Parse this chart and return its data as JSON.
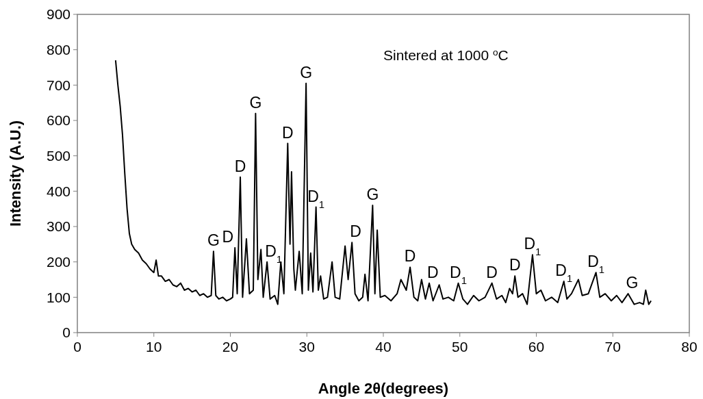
{
  "chart_data": {
    "type": "line",
    "xlabel": "Angle 2θ(degrees)",
    "ylabel": "Intensity (A.U.)",
    "xlim": [
      0,
      80
    ],
    "xticks": [
      0,
      10,
      20,
      30,
      40,
      50,
      60,
      70,
      80
    ],
    "ylim": [
      0,
      900
    ],
    "yticks": [
      0,
      100,
      200,
      300,
      400,
      500,
      600,
      700,
      800,
      900
    ],
    "grid": false,
    "marker": "none",
    "line_style": "solid",
    "series": [
      {
        "color": "#000000",
        "x": [
          5,
          5.3,
          5.6,
          5.9,
          6.2,
          6.5,
          6.8,
          7.1,
          7.5,
          8,
          8.5,
          9,
          9.5,
          10,
          10.3,
          10.6,
          11,
          11.5,
          12,
          12.5,
          13,
          13.5,
          14,
          14.5,
          15,
          15.5,
          16,
          16.5,
          17,
          17.5,
          17.8,
          18.1,
          18.5,
          19,
          19.5,
          20,
          20.3,
          20.6,
          20.9,
          21.3,
          21.6,
          22.1,
          22.5,
          23,
          23.3,
          23.6,
          24,
          24.3,
          24.8,
          25.2,
          25.8,
          26.2,
          26.6,
          27,
          27.5,
          27.8,
          28,
          28.3,
          28.5,
          29,
          29.4,
          29.9,
          30.2,
          30.5,
          30.8,
          31.2,
          31.5,
          31.8,
          32.2,
          32.7,
          33.3,
          33.7,
          34.3,
          35,
          35.4,
          35.9,
          36.3,
          36.8,
          37.3,
          37.6,
          38,
          38.6,
          38.9,
          39.2,
          39.6,
          40.2,
          41,
          41.8,
          42.3,
          43,
          43.5,
          44,
          44.5,
          45,
          45.5,
          46,
          46.5,
          47.3,
          47.8,
          48.5,
          49.2,
          49.8,
          50.4,
          51,
          51.8,
          52.5,
          53.3,
          54.2,
          54.8,
          55.5,
          56,
          56.5,
          56.9,
          57.2,
          57.6,
          58.2,
          58.8,
          59.5,
          60,
          60.6,
          61.2,
          62,
          62.8,
          63.6,
          64,
          64.6,
          65.5,
          66,
          66.8,
          67.8,
          68.3,
          69,
          69.8,
          70.5,
          71.2,
          72,
          72.8,
          73.5,
          74,
          74.3,
          74.7,
          75
        ],
        "values": [
          770,
          700,
          640,
          560,
          450,
          350,
          280,
          250,
          235,
          225,
          205,
          195,
          180,
          170,
          205,
          160,
          160,
          145,
          150,
          135,
          130,
          140,
          120,
          125,
          115,
          120,
          105,
          110,
          100,
          105,
          230,
          105,
          95,
          100,
          90,
          95,
          100,
          240,
          110,
          440,
          100,
          265,
          110,
          120,
          620,
          150,
          235,
          100,
          200,
          95,
          105,
          80,
          200,
          110,
          535,
          250,
          455,
          180,
          120,
          230,
          110,
          705,
          120,
          225,
          115,
          355,
          120,
          160,
          95,
          100,
          200,
          100,
          95,
          245,
          150,
          255,
          110,
          90,
          100,
          165,
          90,
          360,
          110,
          290,
          100,
          105,
          90,
          110,
          150,
          120,
          185,
          100,
          90,
          150,
          95,
          140,
          90,
          135,
          95,
          100,
          90,
          140,
          95,
          80,
          105,
          90,
          100,
          140,
          95,
          105,
          85,
          125,
          110,
          160,
          100,
          110,
          80,
          220,
          110,
          120,
          90,
          100,
          85,
          145,
          95,
          110,
          150,
          105,
          110,
          170,
          100,
          110,
          90,
          105,
          85,
          110,
          80,
          85,
          80,
          120,
          80,
          90
        ]
      }
    ],
    "annotations": [
      "Sintered at  1000 $^{o}$C",
      {
        "text": "G",
        "x": 17.8,
        "y": 230
      },
      {
        "text": "D",
        "x": 20.6,
        "y": 240
      },
      {
        "text": "D",
        "x": 21.3,
        "y": 440
      },
      {
        "text": "G",
        "x": 23.3,
        "y": 620
      },
      {
        "text": "D$_{1}$",
        "x": 24.8,
        "y": 200
      },
      {
        "text": "D",
        "x": 27.5,
        "y": 535
      },
      {
        "text": "G",
        "x": 29.9,
        "y": 705
      },
      {
        "text": "D$_{1}$",
        "x": 31.2,
        "y": 355
      },
      {
        "text": "D",
        "x": 35.9,
        "y": 255
      },
      {
        "text": "G",
        "x": 38.6,
        "y": 360
      },
      {
        "text": "D",
        "x": 43.5,
        "y": 185
      },
      {
        "text": "D",
        "x": 46,
        "y": 140
      },
      {
        "text": "D$_{1}$",
        "x": 49.8,
        "y": 140
      },
      {
        "text": "D",
        "x": 54.2,
        "y": 140
      },
      {
        "text": "D",
        "x": 57.2,
        "y": 160
      },
      {
        "text": "D$_{1}$",
        "x": 59.5,
        "y": 220
      },
      {
        "text": "D$_{1}$",
        "x": 63.6,
        "y": 145
      },
      {
        "text": "D$_{1}$",
        "x": 67.8,
        "y": 170
      },
      {
        "text": "G",
        "x": 72,
        "y": 110
      }
    ]
  }
}
